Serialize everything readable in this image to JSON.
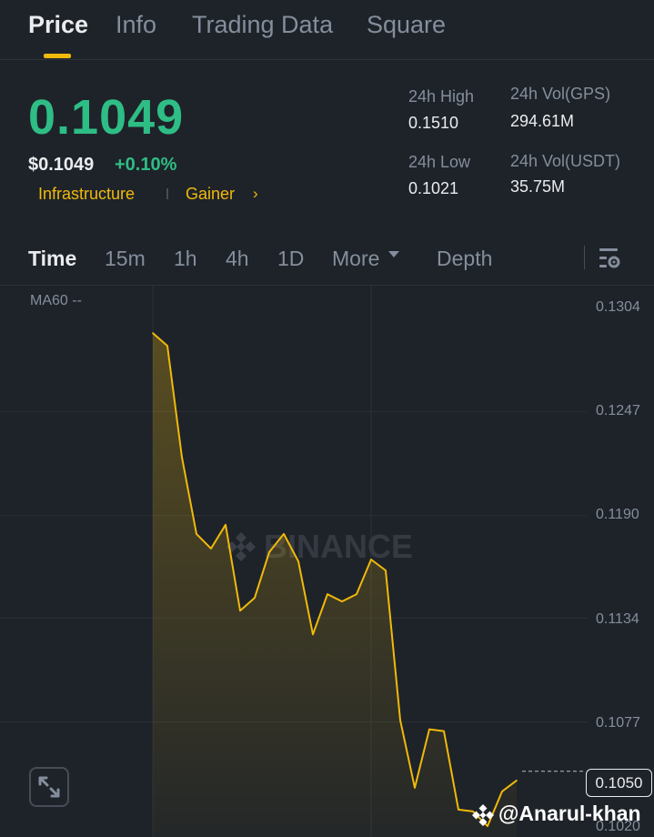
{
  "tabs": [
    {
      "label": "Price",
      "active": true
    },
    {
      "label": "Info",
      "active": false
    },
    {
      "label": "Trading Data",
      "active": false
    },
    {
      "label": "Square",
      "active": false
    }
  ],
  "price": {
    "last": "0.1049",
    "usd": "$0.1049",
    "change": "+0.10%",
    "tags": [
      "Infrastructure",
      "Gainer"
    ]
  },
  "stats": {
    "high_label": "24h High",
    "high_value": "0.1510",
    "low_label": "24h Low",
    "low_value": "0.1021",
    "vol_base_label": "24h Vol(GPS)",
    "vol_base_value": "294.61M",
    "vol_quote_label": "24h Vol(USDT)",
    "vol_quote_value": "35.75M"
  },
  "timeframes": {
    "time": "Time",
    "m15": "15m",
    "h1": "1h",
    "h4": "4h",
    "d1": "1D",
    "more": "More",
    "depth": "Depth"
  },
  "chart": {
    "ma_label": "MA60 --",
    "axis_labels": [
      "0.1304",
      "0.1247",
      "0.1190",
      "0.1134",
      "0.1077",
      "0.1020"
    ],
    "last_price_label": "0.1050",
    "watermark": "BINANCE",
    "user_watermark": "@Anarul-khan"
  },
  "colors": {
    "background": "#1e2329",
    "up": "#2ebd85",
    "accent": "#f0b90b",
    "muted": "#848e9c",
    "line": "#f0b90b"
  },
  "icons": {
    "settings": "chart-settings-icon",
    "expand": "expand-icon",
    "more": "caret-down-icon",
    "logo": "binance-logo-icon"
  },
  "chart_data": {
    "type": "area",
    "ylim": [
      0.102,
      0.1304
    ],
    "y_ticks": [
      0.1304,
      0.1247,
      0.119,
      0.1134,
      0.1077,
      0.102
    ],
    "grid": true,
    "series": [
      {
        "values": [
          0.129,
          0.1283,
          0.1222,
          0.118,
          0.1172,
          0.1185,
          0.1138,
          0.1145,
          0.117,
          0.118,
          0.1165,
          0.1125,
          0.1147,
          0.1143,
          0.1147,
          0.1166,
          0.116,
          0.1078,
          0.1041,
          0.1073,
          0.1072,
          0.1029,
          0.1028,
          0.102,
          0.1039,
          0.1045
        ]
      }
    ],
    "last_price": 0.105
  }
}
